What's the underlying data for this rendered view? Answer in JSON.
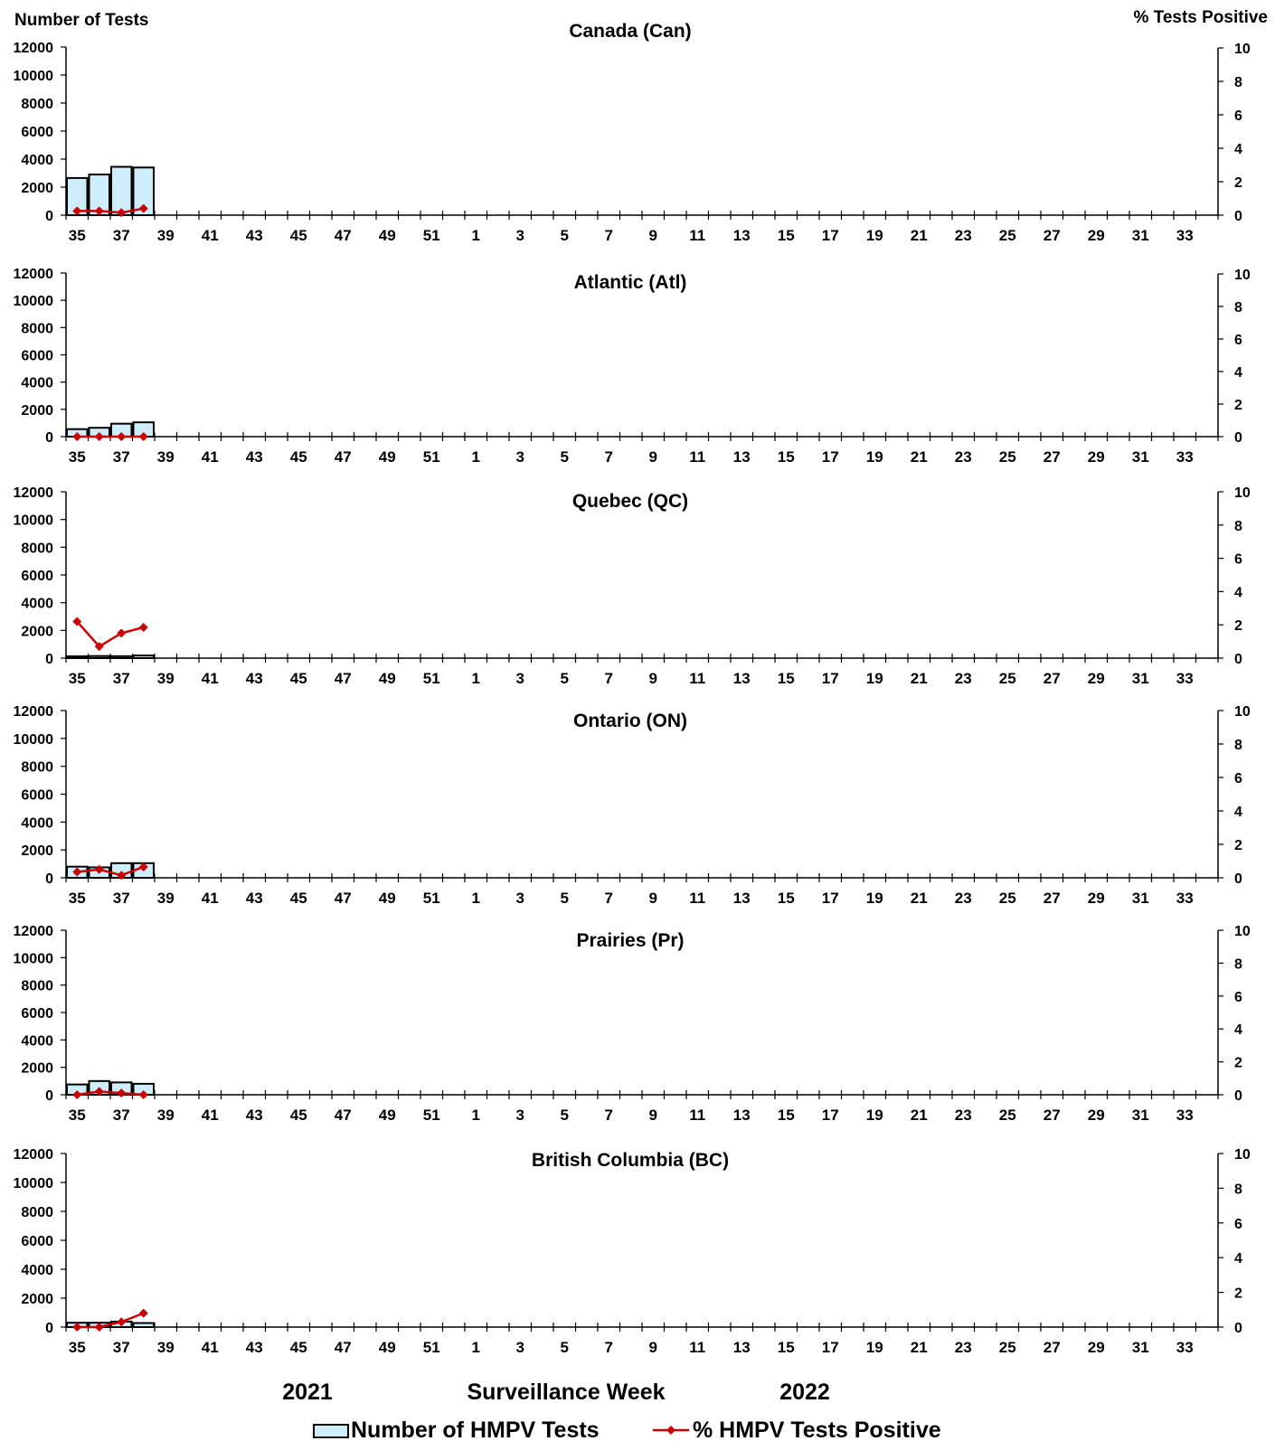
{
  "left_axis_title": "Number of Tests",
  "right_axis_title": "% Tests Positive",
  "x_axis_title": "Surveillance Week",
  "year_labels": [
    "2021",
    "2022"
  ],
  "legend": {
    "bars_label": "Number of HMPV Tests",
    "line_label": "% HMPV Tests Positive"
  },
  "colors": {
    "bar_fill": "#cdeefa",
    "bar_stroke": "#000000",
    "line": "#cc0000"
  },
  "chart_data": {
    "type": "bar",
    "weeks": [
      "35",
      "36",
      "37",
      "38",
      "39",
      "40",
      "41",
      "42",
      "43",
      "44",
      "45",
      "46",
      "47",
      "48",
      "49",
      "50",
      "51",
      "52",
      "1",
      "2",
      "3",
      "4",
      "5",
      "6",
      "7",
      "8",
      "9",
      "10",
      "11",
      "12",
      "13",
      "14",
      "15",
      "16",
      "17",
      "18",
      "19",
      "20",
      "21",
      "22",
      "23",
      "24",
      "25",
      "26",
      "27",
      "28",
      "29",
      "30",
      "31",
      "32",
      "33",
      "34"
    ],
    "x_tick_labels": [
      "35",
      "37",
      "39",
      "41",
      "43",
      "45",
      "47",
      "49",
      "51",
      "1",
      "3",
      "5",
      "7",
      "9",
      "11",
      "13",
      "15",
      "17",
      "19",
      "21",
      "23",
      "25",
      "27",
      "29",
      "31",
      "33"
    ],
    "y_left_ticks": [
      0,
      2000,
      4000,
      6000,
      8000,
      10000,
      12000
    ],
    "y_right_ticks": [
      0,
      2,
      4,
      6,
      8,
      10
    ],
    "y_left_range": [
      0,
      12000
    ],
    "y_right_range": [
      0,
      10
    ],
    "panels": [
      {
        "title": "Canada (Can)",
        "tests": [
          2650,
          2900,
          3450,
          3400
        ],
        "pct": [
          0.25,
          0.25,
          0.15,
          0.4
        ]
      },
      {
        "title": "Atlantic (Atl)",
        "tests": [
          550,
          650,
          950,
          1050
        ],
        "pct": [
          0,
          0,
          0,
          0
        ]
      },
      {
        "title": "Quebec (QC)",
        "tests": [
          130,
          150,
          140,
          190
        ],
        "pct": [
          2.2,
          0.7,
          1.5,
          1.85
        ]
      },
      {
        "title": "Ontario (ON)",
        "tests": [
          800,
          750,
          1050,
          1050
        ],
        "pct": [
          0.35,
          0.5,
          0.15,
          0.65
        ]
      },
      {
        "title": "Prairies (Pr)",
        "tests": [
          750,
          1000,
          900,
          800
        ],
        "pct": [
          0,
          0.2,
          0.1,
          0
        ]
      },
      {
        "title": "British Columbia (BC)",
        "tests": [
          300,
          300,
          380,
          280
        ],
        "pct": [
          0,
          0,
          0.3,
          0.8
        ]
      }
    ]
  }
}
